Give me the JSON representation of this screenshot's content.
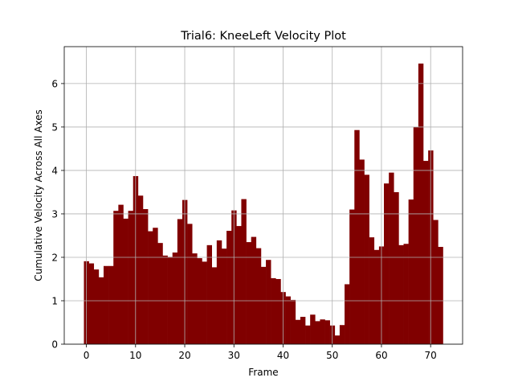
{
  "chart_data": {
    "type": "bar",
    "title": "Trial6: KneeLeft Velocity Plot",
    "xlabel": "Frame",
    "ylabel": "Cumulative Velocity Across All Axes",
    "xlim": [
      -4.5,
      76.5
    ],
    "ylim": [
      0,
      6.85
    ],
    "xticks": [
      0,
      10,
      20,
      30,
      40,
      50,
      60,
      70
    ],
    "yticks": [
      0,
      1,
      2,
      3,
      4,
      5,
      6
    ],
    "grid": true,
    "bar_color": "#800000",
    "x": [
      0,
      1,
      2,
      3,
      4,
      5,
      6,
      7,
      8,
      9,
      10,
      11,
      12,
      13,
      14,
      15,
      16,
      17,
      18,
      19,
      20,
      21,
      22,
      23,
      24,
      25,
      26,
      27,
      28,
      29,
      30,
      31,
      32,
      33,
      34,
      35,
      36,
      37,
      38,
      39,
      40,
      41,
      42,
      43,
      44,
      45,
      46,
      47,
      48,
      49,
      50,
      51,
      52,
      53,
      54,
      55,
      56,
      57,
      58,
      59,
      60,
      61,
      62,
      63,
      64,
      65,
      66,
      67,
      68,
      69,
      70,
      71,
      72
    ],
    "values": [
      1.91,
      1.86,
      1.72,
      1.54,
      1.8,
      1.8,
      3.07,
      3.21,
      2.89,
      3.07,
      3.87,
      3.42,
      3.11,
      2.6,
      2.68,
      2.33,
      2.04,
      2.01,
      2.11,
      2.88,
      3.32,
      2.77,
      2.09,
      1.98,
      1.9,
      2.28,
      1.77,
      2.39,
      2.2,
      2.61,
      3.08,
      2.72,
      3.34,
      2.35,
      2.47,
      2.21,
      1.78,
      1.94,
      1.52,
      1.5,
      1.2,
      1.1,
      1.02,
      0.56,
      0.63,
      0.43,
      0.68,
      0.53,
      0.57,
      0.55,
      0.43,
      0.2,
      0.44,
      1.38,
      3.1,
      4.93,
      4.25,
      3.9,
      2.46,
      2.17,
      2.25,
      3.7,
      3.95,
      3.5,
      2.28,
      2.31,
      3.33,
      5.0,
      6.46,
      4.22,
      4.46,
      2.86,
      2.24
    ]
  }
}
